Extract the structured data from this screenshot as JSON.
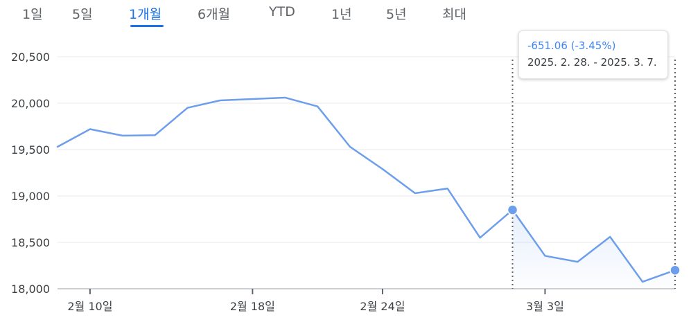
{
  "tabs": [
    {
      "label": "1일"
    },
    {
      "label": "5일"
    },
    {
      "label": "1개월"
    },
    {
      "label": "6개월"
    },
    {
      "label": "YTD"
    },
    {
      "label": "1년"
    },
    {
      "label": "5년"
    },
    {
      "label": "최대"
    }
  ],
  "active_tab": "1개월",
  "tooltip": {
    "change": "-651.06 (-3.45%)",
    "range": "2025. 2. 28. - 2025. 3. 7."
  },
  "colors": {
    "line": "#6d9eeb",
    "accent": "#1a73e8",
    "grid": "#e8eaed",
    "axis_text": "#3c4043"
  },
  "chart_data": {
    "type": "line",
    "ylim": [
      18000,
      20500
    ],
    "yticks": [
      18000,
      18500,
      19000,
      19500,
      20000,
      20500
    ],
    "ytick_labels": [
      "18,000",
      "18,500",
      "19,000",
      "19,500",
      "20,000",
      "20,500"
    ],
    "xtick_labels": [
      "2월 10일",
      "2월 18일",
      "2월 24일",
      "3월 3일"
    ],
    "xtick_index": [
      1,
      6,
      10,
      15
    ],
    "grid": true,
    "selection": {
      "start_index": 14,
      "end_index": 19,
      "start_label": "2025. 2. 28.",
      "end_label": "2025. 3. 7."
    },
    "series": [
      {
        "values": [
          19530,
          19720,
          19650,
          19655,
          19950,
          20030,
          20045,
          20060,
          19965,
          19530,
          19290,
          19030,
          19080,
          18550,
          18850,
          18355,
          18290,
          18560,
          18075,
          18200
        ]
      }
    ]
  }
}
